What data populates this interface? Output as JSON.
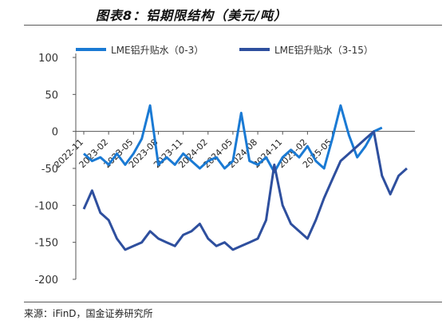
{
  "header": {
    "title": "图表8：铝期限结构（美元/吨）"
  },
  "footer": {
    "source": "来源：iFinD，国金证券研究所"
  },
  "chart_data": {
    "type": "line",
    "title": "图表8：铝期限结构（美元/吨）",
    "ylabel": "",
    "xlabel": "",
    "ylim": [
      -200,
      100
    ],
    "yticks": [
      100,
      50,
      0,
      -50,
      -100,
      -150,
      -200
    ],
    "xticks": [
      "2022-11",
      "2023-02",
      "2023-05",
      "2023-08",
      "2023-11",
      "2024-02",
      "2024-05",
      "2024-08",
      "2024-11",
      "2025-02",
      "2025-05"
    ],
    "legend_position": "top",
    "grid": false,
    "series": [
      {
        "name": "LME铝升贴水（0-3）",
        "color": "#1a7ad4",
        "points": [
          [
            "2022-11",
            -30
          ],
          [
            "2022-12",
            -40
          ],
          [
            "2023-01",
            -35
          ],
          [
            "2023-02",
            -45
          ],
          [
            "2023-03",
            -30
          ],
          [
            "2023-04",
            -45
          ],
          [
            "2023-05",
            -30
          ],
          [
            "2023-06",
            -10
          ],
          [
            "2023-07",
            35
          ],
          [
            "2023-08",
            -45
          ],
          [
            "2023-09",
            -35
          ],
          [
            "2023-10",
            -45
          ],
          [
            "2023-11",
            -30
          ],
          [
            "2023-12",
            -40
          ],
          [
            "2024-01",
            -50
          ],
          [
            "2024-02",
            -40
          ],
          [
            "2024-03",
            -35
          ],
          [
            "2024-04",
            -50
          ],
          [
            "2024-05",
            -40
          ],
          [
            "2024-06",
            25
          ],
          [
            "2024-07",
            -40
          ],
          [
            "2024-08",
            -45
          ],
          [
            "2024-09",
            -35
          ],
          [
            "2024-10",
            -55
          ],
          [
            "2024-11",
            -35
          ],
          [
            "2024-12",
            -25
          ],
          [
            "2025-01",
            -35
          ],
          [
            "2025-02",
            -20
          ],
          [
            "2025-03",
            -40
          ],
          [
            "2025-04",
            -50
          ],
          [
            "2025-05",
            -10
          ],
          [
            "2025-06",
            35
          ],
          [
            "2025-07",
            -5
          ],
          [
            "2025-08",
            -35
          ],
          [
            "2025-09",
            -20
          ],
          [
            "2025-10",
            0
          ],
          [
            "2025-11",
            5
          ]
        ]
      },
      {
        "name": "LME铝升贴水（3-15）",
        "color": "#2e4f9e",
        "points": [
          [
            "2022-11",
            -105
          ],
          [
            "2022-12",
            -80
          ],
          [
            "2023-01",
            -110
          ],
          [
            "2023-02",
            -120
          ],
          [
            "2023-03",
            -145
          ],
          [
            "2023-04",
            -160
          ],
          [
            "2023-05",
            -155
          ],
          [
            "2023-06",
            -150
          ],
          [
            "2023-07",
            -135
          ],
          [
            "2023-08",
            -145
          ],
          [
            "2023-09",
            -150
          ],
          [
            "2023-10",
            -155
          ],
          [
            "2023-11",
            -140
          ],
          [
            "2023-12",
            -135
          ],
          [
            "2024-01",
            -125
          ],
          [
            "2024-02",
            -145
          ],
          [
            "2024-03",
            -155
          ],
          [
            "2024-04",
            -150
          ],
          [
            "2024-05",
            -160
          ],
          [
            "2024-06",
            -155
          ],
          [
            "2024-07",
            -150
          ],
          [
            "2024-08",
            -145
          ],
          [
            "2024-09",
            -120
          ],
          [
            "2024-10",
            -45
          ],
          [
            "2024-11",
            -100
          ],
          [
            "2024-12",
            -125
          ],
          [
            "2025-01",
            -135
          ],
          [
            "2025-02",
            -145
          ],
          [
            "2025-03",
            -120
          ],
          [
            "2025-04",
            -90
          ],
          [
            "2025-05",
            -65
          ],
          [
            "2025-06",
            -40
          ],
          [
            "2025-07",
            -30
          ],
          [
            "2025-08",
            -20
          ],
          [
            "2025-09",
            -10
          ],
          [
            "2025-10",
            0
          ],
          [
            "2025-11",
            -60
          ],
          [
            "2025-12",
            -85
          ],
          [
            "2026-01",
            -60
          ],
          [
            "2026-02",
            -50
          ]
        ]
      }
    ]
  }
}
